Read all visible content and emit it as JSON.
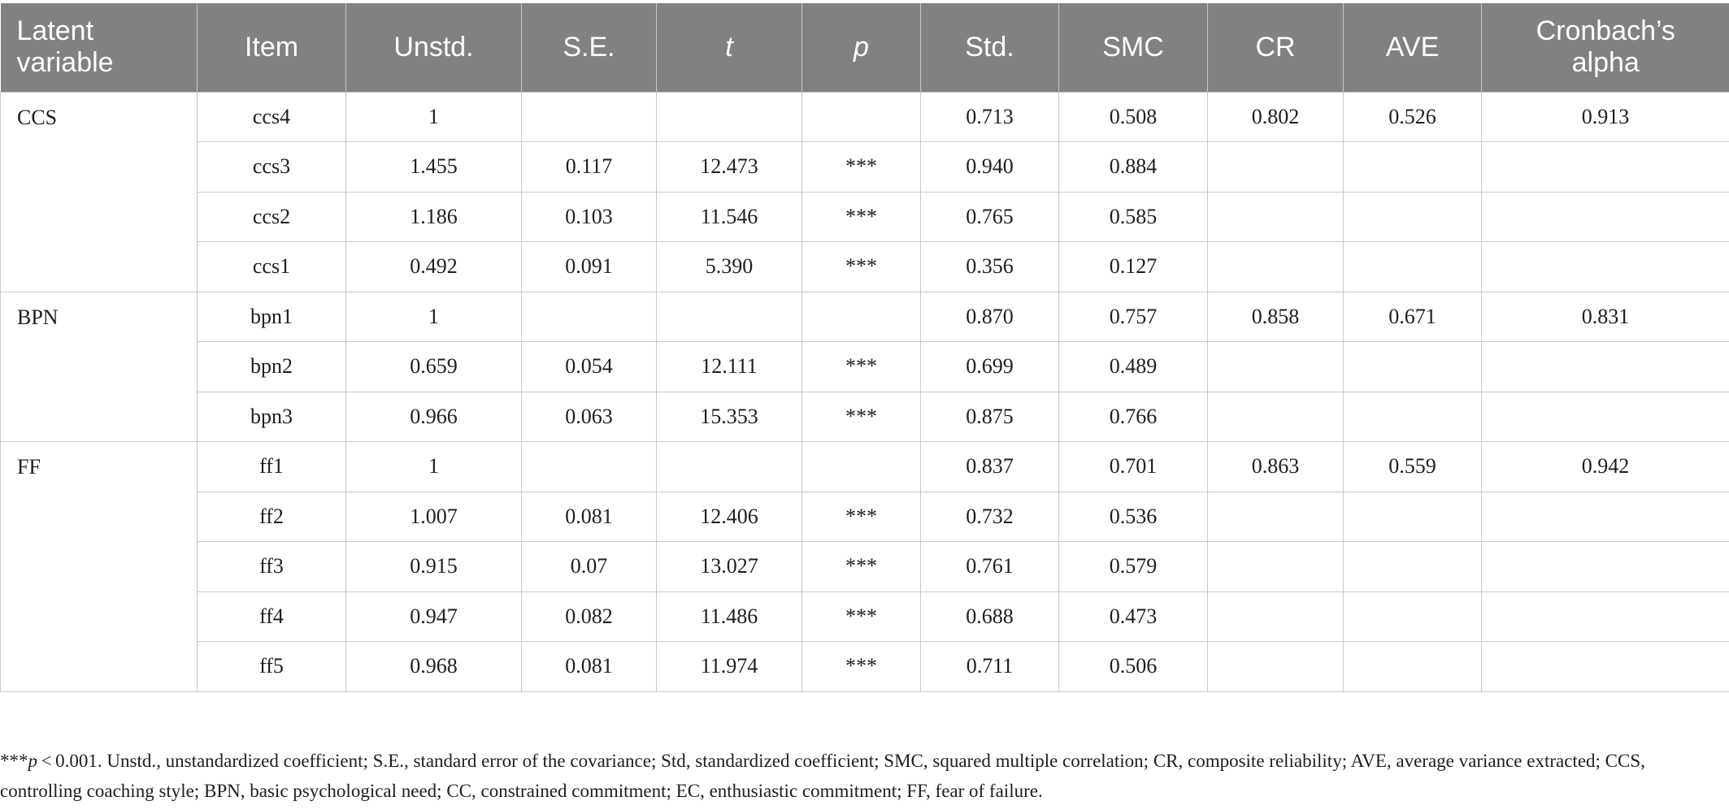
{
  "table": {
    "headers": [
      "Latent variable",
      "Item",
      "Unstd.",
      "S.E.",
      "t",
      "p",
      "Std.",
      "SMC",
      "CR",
      "AVE",
      "Cronbach's alpha"
    ],
    "header_line1": [
      "Latent",
      "Item",
      "Unstd.",
      "S.E.",
      "t",
      "p",
      "Std.",
      "SMC",
      "CR",
      "AVE",
      "Cronbach’s"
    ],
    "header_line2": [
      "variable",
      "",
      "",
      "",
      "",
      "",
      "",
      "",
      "",
      "",
      "alpha"
    ],
    "groups": [
      {
        "latent": "CCS",
        "rows": [
          {
            "item": "ccs4",
            "unstd": "1",
            "se": "",
            "t": "",
            "p": "",
            "std": "0.713",
            "smc": "0.508",
            "cr": "0.802",
            "ave": "0.526",
            "alpha": "0.913"
          },
          {
            "item": "ccs3",
            "unstd": "1.455",
            "se": "0.117",
            "t": "12.473",
            "p": "***",
            "std": "0.940",
            "smc": "0.884",
            "cr": "",
            "ave": "",
            "alpha": ""
          },
          {
            "item": "ccs2",
            "unstd": "1.186",
            "se": "0.103",
            "t": "11.546",
            "p": "***",
            "std": "0.765",
            "smc": "0.585",
            "cr": "",
            "ave": "",
            "alpha": ""
          },
          {
            "item": "ccs1",
            "unstd": "0.492",
            "se": "0.091",
            "t": "5.390",
            "p": "***",
            "std": "0.356",
            "smc": "0.127",
            "cr": "",
            "ave": "",
            "alpha": ""
          }
        ]
      },
      {
        "latent": "BPN",
        "rows": [
          {
            "item": "bpn1",
            "unstd": "1",
            "se": "",
            "t": "",
            "p": "",
            "std": "0.870",
            "smc": "0.757",
            "cr": "0.858",
            "ave": "0.671",
            "alpha": "0.831"
          },
          {
            "item": "bpn2",
            "unstd": "0.659",
            "se": "0.054",
            "t": "12.111",
            "p": "***",
            "std": "0.699",
            "smc": "0.489",
            "cr": "",
            "ave": "",
            "alpha": ""
          },
          {
            "item": "bpn3",
            "unstd": "0.966",
            "se": "0.063",
            "t": "15.353",
            "p": "***",
            "std": "0.875",
            "smc": "0.766",
            "cr": "",
            "ave": "",
            "alpha": ""
          }
        ]
      },
      {
        "latent": "FF",
        "rows": [
          {
            "item": "ff1",
            "unstd": "1",
            "se": "",
            "t": "",
            "p": "",
            "std": "0.837",
            "smc": "0.701",
            "cr": "0.863",
            "ave": "0.559",
            "alpha": "0.942"
          },
          {
            "item": "ff2",
            "unstd": "1.007",
            "se": "0.081",
            "t": "12.406",
            "p": "***",
            "std": "0.732",
            "smc": "0.536",
            "cr": "",
            "ave": "",
            "alpha": ""
          },
          {
            "item": "ff3",
            "unstd": "0.915",
            "se": "0.07",
            "t": "13.027",
            "p": "***",
            "std": "0.761",
            "smc": "0.579",
            "cr": "",
            "ave": "",
            "alpha": ""
          },
          {
            "item": "ff4",
            "unstd": "0.947",
            "se": "0.082",
            "t": "11.486",
            "p": "***",
            "std": "0.688",
            "smc": "0.473",
            "cr": "",
            "ave": "",
            "alpha": ""
          },
          {
            "item": "ff5",
            "unstd": "0.968",
            "se": "0.081",
            "t": "11.974",
            "p": "***",
            "std": "0.711",
            "smc": "0.506",
            "cr": "",
            "ave": "",
            "alpha": ""
          }
        ]
      }
    ]
  },
  "footnote": {
    "prefix": "***",
    "p_symbol": "p",
    "text": " < 0.001. Unstd., unstandardized coefficient; S.E., standard error of the covariance; Std, standardized coefficient; SMC, squared multiple correlation; CR, composite reliability; AVE, average variance extracted; CCS, controlling coaching style; BPN, basic psychological need; CC, constrained commitment; EC, enthusiastic commitment; FF, fear of failure."
  },
  "colors": {
    "header_background": "#808281",
    "header_text": "#ffffff",
    "grid_lines": "#c8c8c8",
    "body_text": "#1e1e1e"
  }
}
